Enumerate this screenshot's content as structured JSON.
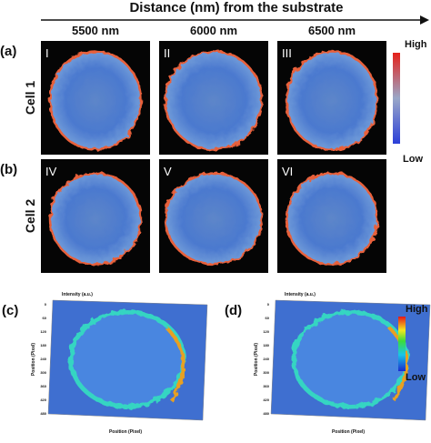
{
  "header": {
    "title": "Distance (nm) from the substrate",
    "columns": [
      "5500 nm",
      "6000 nm",
      "6500 nm"
    ]
  },
  "rows": [
    {
      "panel": "(a)",
      "label": "Cell 1",
      "images": [
        "I",
        "II",
        "III"
      ]
    },
    {
      "panel": "(b)",
      "label": "Cell 2",
      "images": [
        "IV",
        "V",
        "VI"
      ]
    }
  ],
  "colorbar": {
    "high": "High",
    "low": "Low"
  },
  "plots": [
    {
      "panel": "(c)",
      "z_label": "Intensity (a.u.)",
      "y_label": "Position (Pixel)",
      "x_label": "Position (Pixel)",
      "yticks": [
        "0",
        "60",
        "120",
        "180",
        "240",
        "300",
        "360",
        "420",
        "480"
      ]
    },
    {
      "panel": "(d)",
      "z_label": "Intensity (a.u.)",
      "y_label": "Position (Pixel)",
      "x_label": "Position (Pixel)",
      "yticks": [
        "0",
        "60",
        "120",
        "180",
        "240",
        "300",
        "360",
        "420",
        "480"
      ]
    }
  ],
  "colorbar2": {
    "high": "High",
    "low": "Low"
  }
}
